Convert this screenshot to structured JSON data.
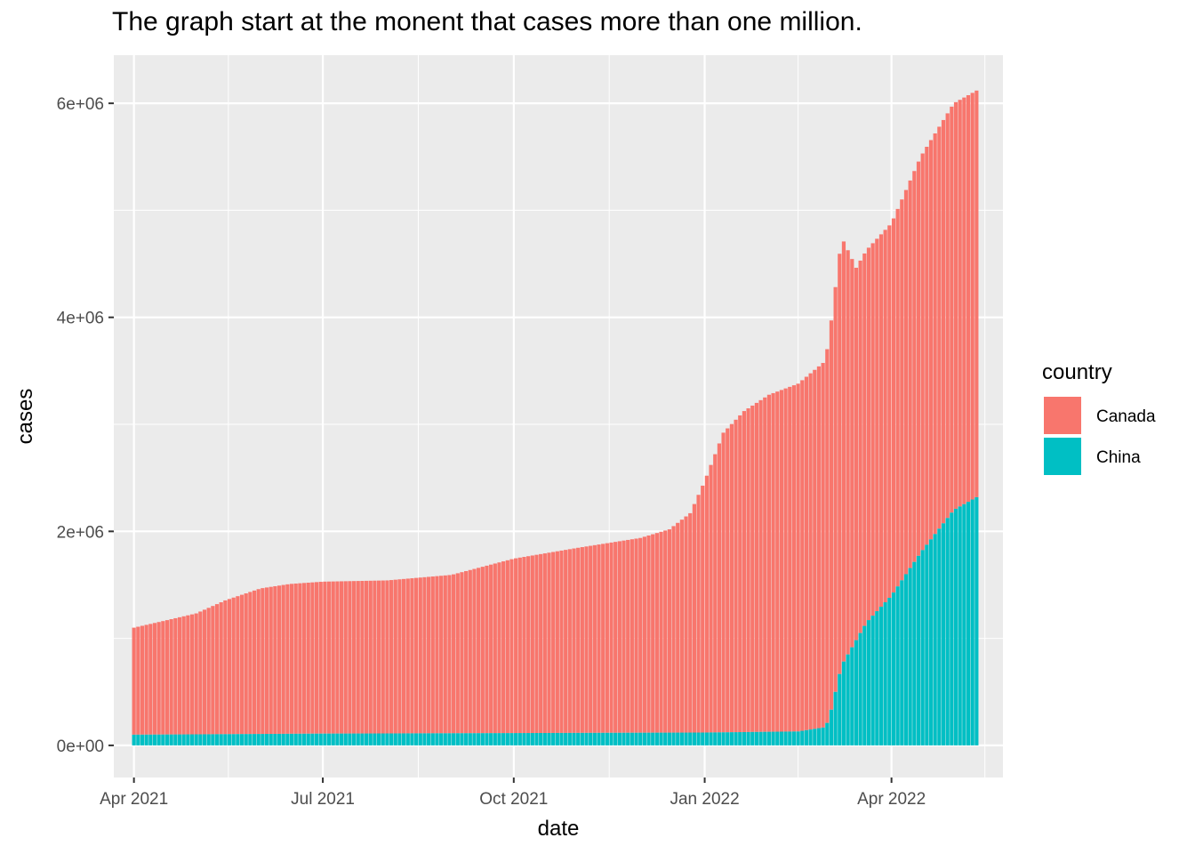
{
  "chart_data": {
    "type": "bar",
    "stacked": true,
    "title": "The graph start at the monent that cases more than one million.",
    "xlabel": "date",
    "ylabel": "cases",
    "x_start": "2021-04-01",
    "x_end": "2022-05-15",
    "x_ticks": [
      {
        "date": "2021-04-01",
        "label": "Apr 2021"
      },
      {
        "date": "2021-07-01",
        "label": "Jul 2021"
      },
      {
        "date": "2021-10-01",
        "label": "Oct 2021"
      },
      {
        "date": "2022-01-01",
        "label": "Jan 2022"
      },
      {
        "date": "2022-04-01",
        "label": "Apr 2022"
      }
    ],
    "y_ticks": [
      {
        "value": 0,
        "label": "0e+00"
      },
      {
        "value": 2000000,
        "label": "2e+06"
      },
      {
        "value": 4000000,
        "label": "4e+06"
      },
      {
        "value": 6000000,
        "label": "6e+06"
      }
    ],
    "ylim": [
      -300000,
      6450000
    ],
    "grid": true,
    "legend": {
      "title": "country",
      "position": "right"
    },
    "series": [
      {
        "name": "Canada",
        "color": "#F8766D",
        "points": [
          [
            "2021-04-01",
            1000000
          ],
          [
            "2021-04-15",
            1060000
          ],
          [
            "2021-05-01",
            1130000
          ],
          [
            "2021-05-15",
            1250000
          ],
          [
            "2021-06-01",
            1360000
          ],
          [
            "2021-06-15",
            1400000
          ],
          [
            "2021-07-01",
            1420000
          ],
          [
            "2021-08-01",
            1430000
          ],
          [
            "2021-09-01",
            1480000
          ],
          [
            "2021-10-01",
            1630000
          ],
          [
            "2021-11-01",
            1730000
          ],
          [
            "2021-12-01",
            1820000
          ],
          [
            "2021-12-15",
            1900000
          ],
          [
            "2021-12-25",
            2050000
          ],
          [
            "2022-01-01",
            2350000
          ],
          [
            "2022-01-10",
            2800000
          ],
          [
            "2022-01-20",
            3000000
          ],
          [
            "2022-02-01",
            3150000
          ],
          [
            "2022-02-15",
            3250000
          ],
          [
            "2022-02-28",
            3420000
          ],
          [
            "2022-03-08",
            4000000
          ],
          [
            "2022-03-15",
            3480000
          ],
          [
            "2022-04-01",
            3480000
          ],
          [
            "2022-04-15",
            3700000
          ],
          [
            "2022-05-01",
            3800000
          ],
          [
            "2022-05-13",
            3800000
          ]
        ]
      },
      {
        "name": "China",
        "color": "#00BFC4",
        "points": [
          [
            "2021-04-01",
            100000
          ],
          [
            "2021-07-01",
            110000
          ],
          [
            "2021-10-01",
            115000
          ],
          [
            "2022-01-01",
            120000
          ],
          [
            "2022-02-15",
            130000
          ],
          [
            "2022-02-28",
            170000
          ],
          [
            "2022-03-02",
            250000
          ],
          [
            "2022-03-08",
            750000
          ],
          [
            "2022-03-20",
            1150000
          ],
          [
            "2022-04-01",
            1400000
          ],
          [
            "2022-04-15",
            1800000
          ],
          [
            "2022-05-01",
            2200000
          ],
          [
            "2022-05-13",
            2330000
          ]
        ]
      }
    ]
  }
}
